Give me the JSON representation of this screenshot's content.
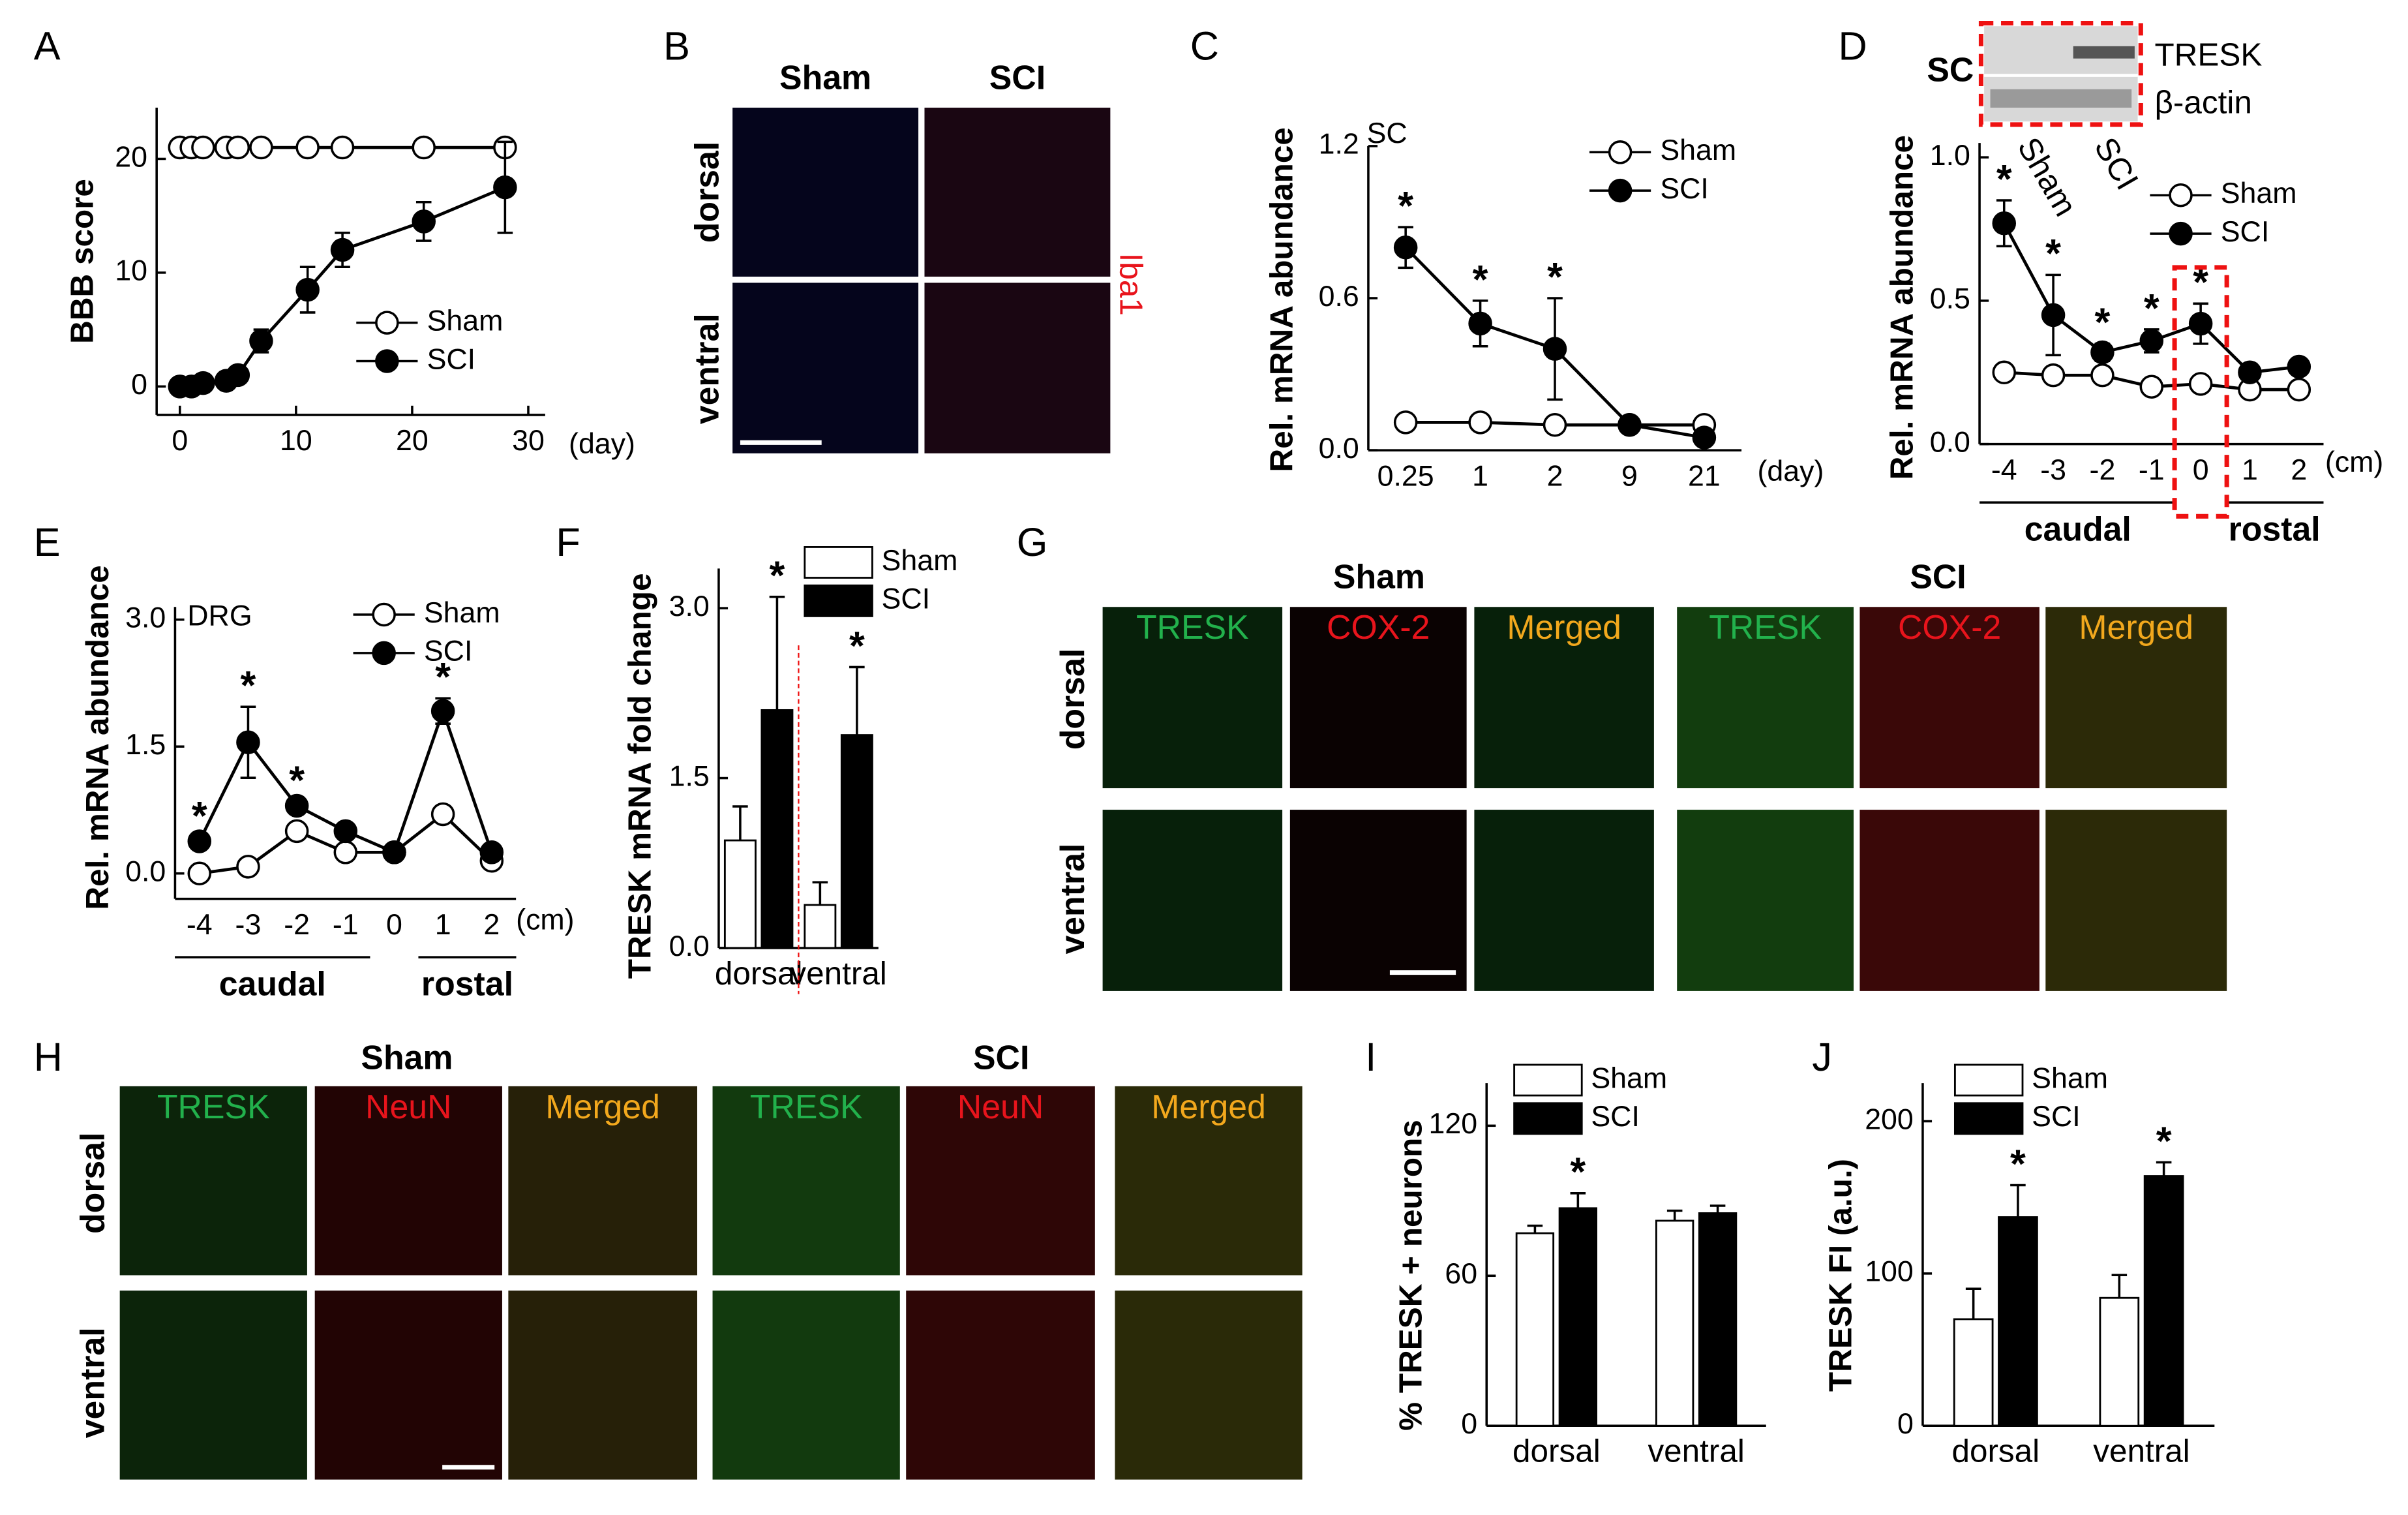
{
  "chart_data": [
    {
      "type": "line",
      "panel": "A",
      "ylabel": "BBB score",
      "xunit": "(day)",
      "x": [
        0,
        1,
        2,
        4,
        5,
        7,
        11,
        14,
        21,
        28
      ],
      "xlim": [
        -2,
        30
      ],
      "xticks": [
        0,
        10,
        20,
        30
      ],
      "ylim": [
        -2.5,
        24.5
      ],
      "yticks": [
        0,
        10,
        20
      ],
      "series": [
        {
          "name": "Sham",
          "color": "#ffffff",
          "values": [
            21,
            21,
            21,
            21,
            21,
            21,
            21,
            21,
            21,
            21
          ]
        },
        {
          "name": "SCI",
          "color": "#000000",
          "values": [
            0,
            0,
            0.3,
            0.5,
            1,
            4,
            8.5,
            12,
            14.5,
            17.5
          ],
          "errors": [
            0,
            0,
            0,
            0,
            0.5,
            1,
            2,
            1.5,
            1.7,
            4
          ]
        }
      ]
    },
    {
      "type": "line",
      "panel": "C",
      "ylabel": "Rel. mRNA abundance",
      "annotation": "SC",
      "xunit": "(day)",
      "categories": [
        "0.25",
        "1",
        "2",
        "9",
        "21"
      ],
      "ylim": [
        0,
        1.2
      ],
      "yticks": [
        {
          "value": 0,
          "label": "0.0"
        },
        0.6,
        1.2
      ],
      "series": [
        {
          "name": "Sham",
          "color": "#ffffff",
          "values": [
            0.11,
            0.11,
            0.1,
            0.1,
            0.1
          ]
        },
        {
          "name": "SCI",
          "color": "#000000",
          "values": [
            0.8,
            0.5,
            0.4,
            0.1,
            0.05
          ],
          "errors": [
            0.08,
            0.09,
            0.2,
            0.01,
            0.01
          ],
          "stars": [
            "*",
            "*",
            "*",
            null,
            null
          ]
        }
      ]
    },
    {
      "type": "line",
      "panel": "D",
      "ylabel": "Rel. mRNA abundance",
      "xunit": "(cm)",
      "categories": [
        "-4",
        "-3",
        "-2",
        "-1",
        "0",
        "1",
        "2"
      ],
      "group_labels": [
        "caudal",
        "rostal"
      ],
      "ylim": [
        0,
        1.05
      ],
      "yticks": [
        {
          "value": 0,
          "label": "0.0"
        },
        0.5,
        {
          "value": 1,
          "label": "1.0"
        }
      ],
      "blot": {
        "label": "SC",
        "bands": [
          "TRESK",
          "β-actin"
        ],
        "lanes": [
          "Sham",
          "SCI"
        ]
      },
      "series": [
        {
          "name": "Sham",
          "color": "#ffffff",
          "values": [
            0.25,
            0.24,
            0.24,
            0.2,
            0.21,
            0.19,
            0.19
          ]
        },
        {
          "name": "SCI",
          "color": "#000000",
          "values": [
            0.77,
            0.45,
            0.32,
            0.36,
            0.42,
            0.25,
            0.27
          ],
          "errors": [
            0.08,
            0.14,
            0.03,
            0.04,
            0.07,
            0.03,
            0.02
          ],
          "stars": [
            "*",
            "*",
            "*",
            "*",
            "*",
            null,
            null
          ]
        }
      ]
    },
    {
      "type": "line",
      "panel": "E",
      "ylabel": "Rel. mRNA abundance",
      "annotation": "DRG",
      "xunit": "(cm)",
      "categories": [
        "-4",
        "-3",
        "-2",
        "-1",
        "0",
        "1",
        "2"
      ],
      "group_labels": [
        "caudal",
        "rostal"
      ],
      "ylim": [
        -0.3,
        3.15
      ],
      "yticks": [
        {
          "value": 0,
          "label": "0.0"
        },
        1.5,
        {
          "value": 3,
          "label": "3.0"
        }
      ],
      "series": [
        {
          "name": "Sham",
          "color": "#ffffff",
          "values": [
            0,
            0.08,
            0.5,
            0.25,
            0.25,
            0.7,
            0.15
          ],
          "errors": [
            0.08,
            0.08,
            0.06,
            0.06,
            0,
            0.08,
            0.04
          ]
        },
        {
          "name": "SCI",
          "color": "#000000",
          "values": [
            0.38,
            1.55,
            0.8,
            0.5,
            0.25,
            1.92,
            0.25
          ],
          "errors": [
            0.05,
            0.42,
            0.05,
            0.05,
            0.02,
            0.15,
            0.05
          ],
          "stars": [
            "*",
            "*",
            "*",
            null,
            null,
            "*",
            null
          ]
        }
      ]
    },
    {
      "type": "bar",
      "panel": "F",
      "ylabel": "TRESK mRNA fold change",
      "categories": [
        "dorsal",
        "ventral"
      ],
      "ylim": [
        0,
        3.35
      ],
      "yticks": [
        {
          "value": 0,
          "label": "0.0"
        },
        1.5,
        {
          "value": 3,
          "label": "3.0"
        }
      ],
      "series": [
        {
          "name": "Sham",
          "color": "#ffffff",
          "values": [
            0.95,
            0.38
          ],
          "errors": [
            0.3,
            0.2
          ]
        },
        {
          "name": "SCI",
          "color": "#000000",
          "values": [
            2.1,
            1.88
          ],
          "errors": [
            1.0,
            0.6
          ],
          "stars": [
            "*",
            "*"
          ]
        }
      ]
    },
    {
      "type": "bar",
      "panel": "I",
      "ylabel": "% TRESK + neurons",
      "categories": [
        "dorsal",
        "ventral"
      ],
      "ylim": [
        0,
        137
      ],
      "yticks": [
        0,
        60,
        120
      ],
      "series": [
        {
          "name": "Sham",
          "color": "#ffffff",
          "values": [
            77,
            82
          ],
          "errors": [
            3,
            4
          ]
        },
        {
          "name": "SCI",
          "color": "#000000",
          "values": [
            87,
            85
          ],
          "errors": [
            6,
            3
          ],
          "stars": [
            "*",
            null
          ]
        }
      ]
    },
    {
      "type": "bar",
      "panel": "J",
      "ylabel": "TRESK FI (a.u.)",
      "categories": [
        "dorsal",
        "ventral"
      ],
      "ylim": [
        0,
        225
      ],
      "yticks": [
        0,
        100,
        200
      ],
      "series": [
        {
          "name": "Sham",
          "color": "#ffffff",
          "values": [
            70,
            84
          ],
          "errors": [
            20,
            15
          ]
        },
        {
          "name": "SCI",
          "color": "#000000",
          "values": [
            137,
            164
          ],
          "errors": [
            21,
            9
          ],
          "stars": [
            "*",
            "*"
          ]
        }
      ]
    }
  ],
  "figures": [
    {
      "panel": "B",
      "groups": [
        "Sham",
        "SCI"
      ],
      "rows": [
        "dorsal",
        "ventral"
      ],
      "stain": "Iba1"
    },
    {
      "panel": "G",
      "groups": [
        "Sham",
        "SCI"
      ],
      "channels": [
        "TRESK",
        "COX-2",
        "Merged"
      ],
      "rows": [
        "dorsal",
        "ventral"
      ]
    },
    {
      "panel": "H",
      "groups": [
        "Sham",
        "SCI"
      ],
      "channels": [
        "TRESK",
        "NeuN",
        "Merged"
      ],
      "rows": [
        "dorsal",
        "ventral"
      ]
    }
  ]
}
